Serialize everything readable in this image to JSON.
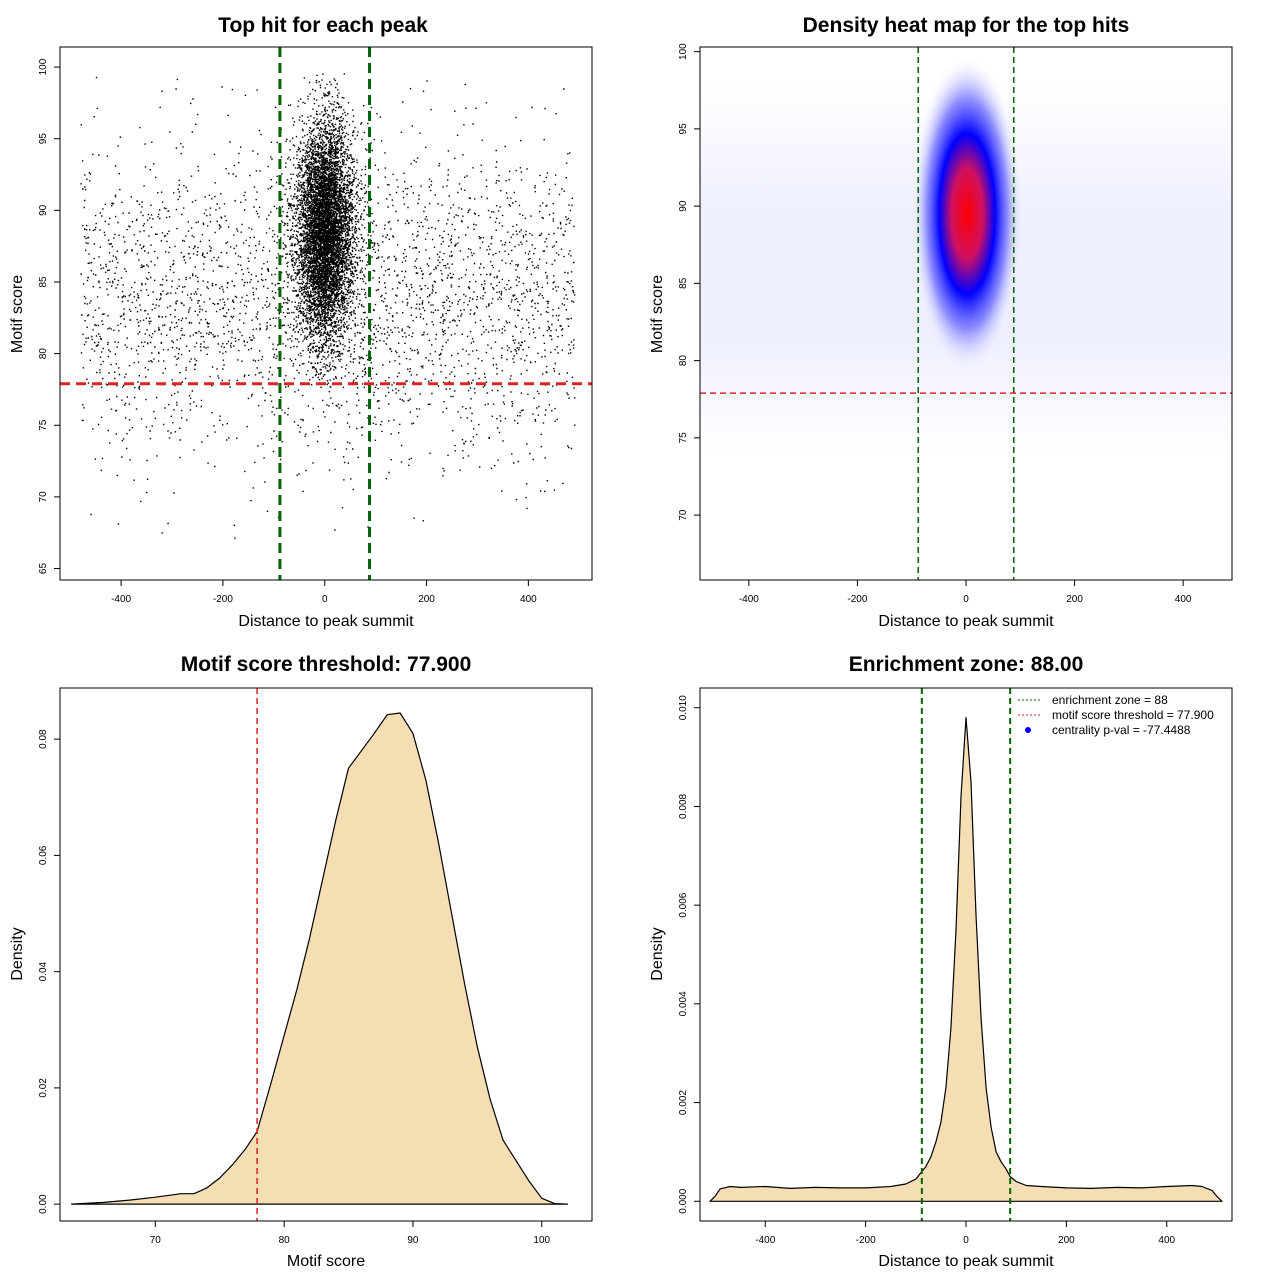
{
  "figure": {
    "panels": 4
  },
  "chart_data": [
    {
      "id": "scatter",
      "type": "scatter",
      "title": "Top hit for each peak",
      "xlabel": "Distance to peak summit",
      "ylabel": "Motif score",
      "xlim": [
        -520,
        525
      ],
      "ylim": [
        64.2,
        101.4
      ],
      "xticks": [
        -400,
        -200,
        0,
        200,
        400
      ],
      "yticks": [
        65,
        70,
        75,
        80,
        85,
        90,
        95,
        100
      ],
      "point_color": "#000000",
      "central_cluster": {
        "x_center": 0,
        "x_sd": 28,
        "y_center": 88.5,
        "y_sd": 3.8,
        "count": 7000
      },
      "background_points": {
        "x_range": [
          -480,
          490
        ],
        "y_center": 84,
        "y_sd": 5.5,
        "count": 3000
      },
      "vlines": {
        "values": [
          -88,
          88
        ],
        "color": "#006400",
        "style": "dashed"
      },
      "hlines": {
        "values": [
          77.9
        ],
        "color": "#dd2222",
        "style": "dashed"
      }
    },
    {
      "id": "heatmap",
      "type": "heatmap",
      "title": "Density heat map for the top hits",
      "xlabel": "Distance to peak summit",
      "ylabel": "Motif score",
      "xlim": [
        -490,
        490
      ],
      "ylim": [
        65.8,
        100.3
      ],
      "xticks": [
        -400,
        -200,
        0,
        200,
        400
      ],
      "yticks": [
        70,
        75,
        80,
        85,
        90,
        95,
        100
      ],
      "color_scale": [
        "#ffffff",
        "#0000ff",
        "#ff0000"
      ],
      "hotspot": {
        "x": 2,
        "y": 89.5
      },
      "vlines": {
        "values": [
          -88,
          88
        ],
        "color": "#006400",
        "style": "dashed"
      },
      "hlines": {
        "values": [
          77.9
        ],
        "color": "#dd2222",
        "style": "dashed"
      }
    },
    {
      "id": "score-density",
      "type": "area",
      "title": "Motif score threshold: 77.900",
      "xlabel": "Motif score",
      "ylabel": "Density",
      "xlim": [
        62.6,
        103.9
      ],
      "ylim": [
        -0.0029,
        0.0888
      ],
      "xticks": [
        70,
        80,
        90,
        100
      ],
      "yticks": [
        0.0,
        0.02,
        0.04,
        0.06,
        0.08
      ],
      "ytick_labels": [
        "0.00",
        "0.02",
        "0.04",
        "0.06",
        "0.08"
      ],
      "fill": "#f5deb3",
      "x": [
        63.5,
        66,
        68,
        70,
        72,
        73,
        74,
        75,
        76,
        77,
        77.9,
        79,
        80,
        81,
        82,
        83,
        84,
        85,
        86,
        87,
        88,
        89,
        90,
        91,
        92,
        93,
        94,
        95,
        96,
        97,
        98,
        99,
        100,
        101,
        102
      ],
      "y": [
        0.0,
        0.0003,
        0.0007,
        0.0012,
        0.0018,
        0.0018,
        0.0028,
        0.0045,
        0.0068,
        0.0095,
        0.0125,
        0.021,
        0.029,
        0.037,
        0.046,
        0.056,
        0.066,
        0.075,
        0.078,
        0.081,
        0.0842,
        0.0845,
        0.081,
        0.073,
        0.062,
        0.05,
        0.038,
        0.027,
        0.018,
        0.011,
        0.0075,
        0.004,
        0.001,
        0.0001,
        0.0
      ],
      "vlines": {
        "values": [
          77.9
        ],
        "color": "#dd2222",
        "style": "dashed"
      }
    },
    {
      "id": "distance-density",
      "type": "area",
      "title": "Enrichment zone: 88.00",
      "xlabel": "Distance to peak summit",
      "ylabel": "Density",
      "xlim": [
        -530,
        530
      ],
      "ylim": [
        -0.0004,
        0.0104
      ],
      "xticks": [
        -400,
        -200,
        0,
        200,
        400
      ],
      "yticks": [
        0.0,
        0.002,
        0.004,
        0.006,
        0.008,
        0.01
      ],
      "ytick_labels": [
        "0.000",
        "0.002",
        "0.004",
        "0.006",
        "0.008",
        "0.010"
      ],
      "fill": "#f5deb3",
      "x": [
        -510,
        -500,
        -490,
        -470,
        -450,
        -400,
        -350,
        -300,
        -250,
        -200,
        -150,
        -120,
        -100,
        -88,
        -80,
        -70,
        -60,
        -50,
        -40,
        -30,
        -20,
        -10,
        0,
        10,
        20,
        30,
        40,
        50,
        60,
        70,
        80,
        88,
        100,
        120,
        150,
        200,
        250,
        300,
        350,
        400,
        450,
        470,
        490,
        500,
        510
      ],
      "y": [
        0.0,
        0.0001,
        0.00025,
        0.0003,
        0.00028,
        0.0003,
        0.00026,
        0.00028,
        0.00027,
        0.00027,
        0.0003,
        0.00035,
        0.00045,
        0.0006,
        0.0007,
        0.0009,
        0.0012,
        0.0016,
        0.0023,
        0.0035,
        0.0055,
        0.0082,
        0.0098,
        0.0085,
        0.0058,
        0.0037,
        0.0023,
        0.0015,
        0.001,
        0.0008,
        0.00065,
        0.0005,
        0.0004,
        0.00032,
        0.0003,
        0.00027,
        0.00026,
        0.00028,
        0.00027,
        0.0003,
        0.00032,
        0.0003,
        0.00022,
        0.0001,
        0.0
      ],
      "vlines": {
        "values": [
          -88,
          88
        ],
        "color": "#006400",
        "style": "dashed"
      },
      "legend": {
        "position": "top-right",
        "entries": [
          {
            "label": "enrichment zone = 88",
            "color": "#006400",
            "symbol": "dotted-line"
          },
          {
            "label": "motif score threshold = 77.900",
            "color": "#dd2222",
            "symbol": "dotted-line"
          },
          {
            "label": "centrality p-val = -77.4488",
            "color": "#0000ff",
            "symbol": "dot"
          }
        ]
      }
    }
  ]
}
